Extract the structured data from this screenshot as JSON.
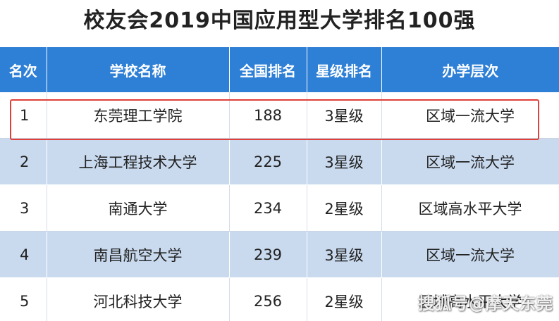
{
  "title": "校友会2019中国应用型大学排名100强",
  "table": {
    "headers": [
      "名次",
      "学校名称",
      "全国排名",
      "星级排名",
      "办学层次"
    ],
    "rows": [
      {
        "rank": "1",
        "name": "东莞理工学院",
        "national": "188",
        "stars": "3星级",
        "level": "区域一流大学"
      },
      {
        "rank": "2",
        "name": "上海工程技术大学",
        "national": "225",
        "stars": "3星级",
        "level": "区域一流大学"
      },
      {
        "rank": "3",
        "name": "南通大学",
        "national": "234",
        "stars": "2星级",
        "level": "区域高水平大学"
      },
      {
        "rank": "4",
        "name": "南昌航空大学",
        "national": "239",
        "stars": "3星级",
        "level": "区域一流大学"
      },
      {
        "rank": "5",
        "name": "河北科技大学",
        "national": "256",
        "stars": "2星级",
        "level": "区域高水平大学"
      }
    ]
  },
  "watermark": "搜狐号@摩天东莞",
  "colors": {
    "header_bg": "#2e7fd6",
    "stripe_bg": "#c9daef",
    "highlight_border": "#e0403a"
  }
}
